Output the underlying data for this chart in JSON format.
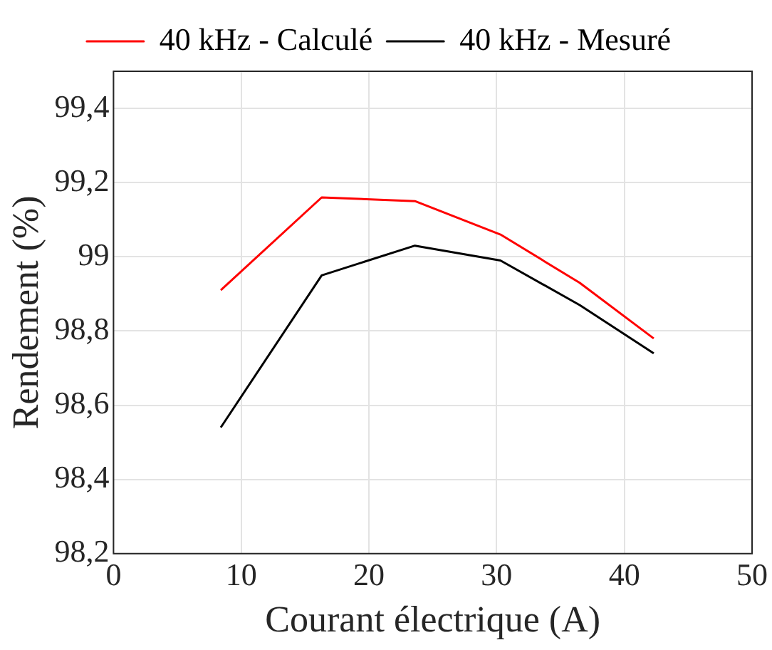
{
  "chart_data": {
    "type": "line",
    "xlabel": "Courant électrique (A)",
    "ylabel": "Rendement (%)",
    "xlim": [
      0,
      50
    ],
    "xticks": [
      0,
      10,
      20,
      30,
      40,
      50
    ],
    "ylim": [
      98.2,
      99.5
    ],
    "yticks": [
      {
        "value": 98.2,
        "label": "98,2"
      },
      {
        "value": 98.4,
        "label": "98,4"
      },
      {
        "value": 98.6,
        "label": "98,6"
      },
      {
        "value": 98.8,
        "label": "98,8"
      },
      99,
      {
        "value": 99.2,
        "label": "99,2"
      },
      {
        "value": 99.4,
        "label": "99,4"
      }
    ],
    "grid": true,
    "legend": "top",
    "marker": "none",
    "line_style": "solid",
    "series": [
      {
        "name": "40 kHz - Calculé",
        "color": "#ff0000",
        "x": [
          8.4,
          16.3,
          23.6,
          30.3,
          36.5,
          42.3
        ],
        "values": [
          98.91,
          99.16,
          99.15,
          99.06,
          98.93,
          98.78
        ]
      },
      {
        "name": "40 kHz - Mesuré",
        "color": "#000000",
        "x": [
          8.4,
          16.3,
          23.6,
          30.3,
          36.5,
          42.3
        ],
        "values": [
          98.54,
          98.95,
          99.03,
          98.99,
          98.87,
          98.74
        ]
      }
    ]
  }
}
